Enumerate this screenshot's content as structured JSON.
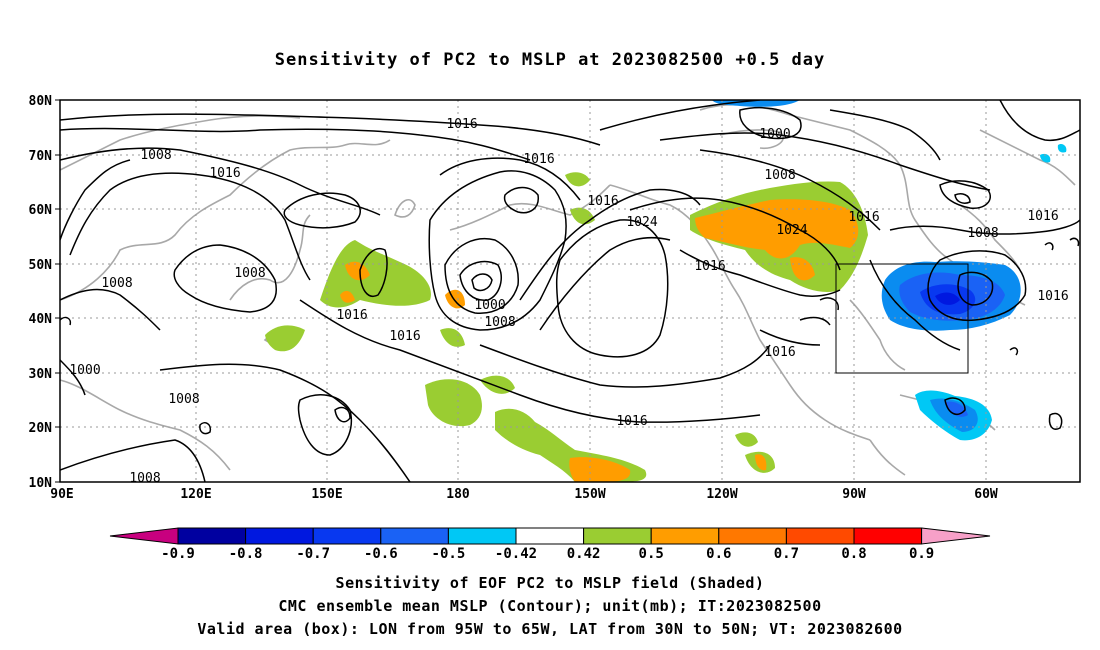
{
  "title": "Sensitivity of PC2 to MSLP at 2023082500 +0.5 day",
  "lat_labels": [
    "80N",
    "70N",
    "60N",
    "50N",
    "40N",
    "30N",
    "20N",
    "10N"
  ],
  "lon_labels": [
    "90E",
    "120E",
    "150E",
    "180",
    "150W",
    "120W",
    "90W",
    "60W"
  ],
  "colorbar": {
    "ticks": [
      "-0.9",
      "-0.8",
      "-0.7",
      "-0.6",
      "-0.5",
      "-0.42",
      "0.42",
      "0.5",
      "0.6",
      "0.7",
      "0.8",
      "0.9"
    ],
    "colors": [
      "#c8007f",
      "#0000a0",
      "#0018e0",
      "#0838f0",
      "#1a62f5",
      "#0a8cf0",
      "#00c8f5",
      "#ffffff",
      "#9acd32",
      "#ff9d00",
      "#ff7800",
      "#ff4a00",
      "#ff1e00",
      "#ff0000",
      "#f7a0c8"
    ]
  },
  "contour_labels": [
    "1016",
    "1008",
    "1016",
    "1008",
    "1016",
    "1008",
    "1016",
    "1016",
    "1000",
    "1008",
    "1016",
    "1024",
    "1016",
    "1000",
    "1008",
    "1016",
    "1024",
    "1016",
    "1008",
    "1016",
    "1016",
    "1016",
    "1008",
    "1000",
    "1008",
    "1008"
  ],
  "caption": {
    "line1": "Sensitivity of EOF PC2 to MSLP field (Shaded)",
    "line2": "CMC ensemble mean MSLP (Contour); unit(mb); IT:2023082500",
    "line3": "Valid area (box): LON from 95W to 65W, LAT from 30N to 50N; VT: 2023082600"
  }
}
